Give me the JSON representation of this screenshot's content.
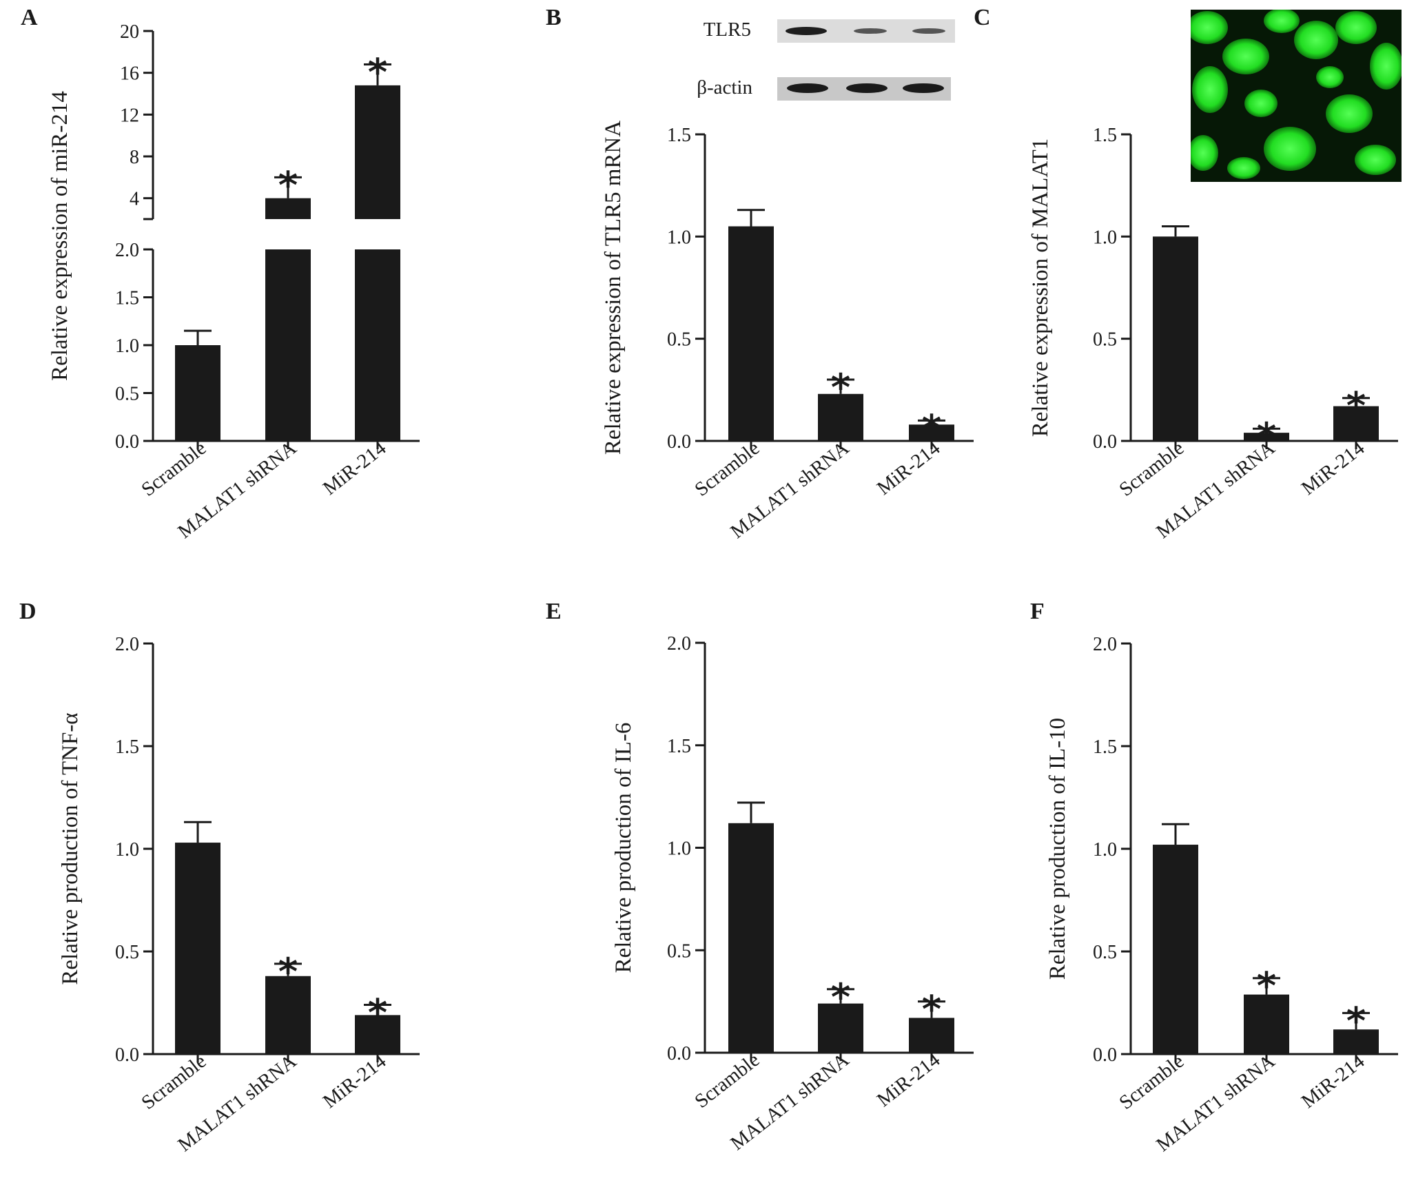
{
  "figure": {
    "panels": [
      {
        "letter": "A"
      },
      {
        "letter": "B",
        "blot": {
          "bands": [
            {
              "label": "TLR5"
            },
            {
              "label": "β-actin"
            }
          ]
        }
      },
      {
        "letter": "C",
        "micrograph": true
      },
      {
        "letter": "D"
      },
      {
        "letter": "E"
      },
      {
        "letter": "F"
      }
    ]
  },
  "colors": {
    "bar": "#1a1a1a",
    "axis": "#1a1a1a",
    "fluorescence": "#22ee22",
    "blot_background": "#d6d6d6"
  },
  "chart_data": [
    {
      "type": "bar",
      "panel": "A",
      "ylabel": "Relative expression of miR-214",
      "categories": [
        "Scramble",
        "MALAT1 shRNA",
        "MiR-214"
      ],
      "values": [
        1.0,
        4.0,
        14.8
      ],
      "errors": [
        0.15,
        2.0,
        2.0
      ],
      "significant": [
        false,
        true,
        true
      ],
      "star_symbol": "*",
      "axis_break": true,
      "lower_segment": {
        "ylim": [
          0,
          2.0
        ],
        "ticks": [
          "0.0",
          "0.5",
          "1.0",
          "1.5",
          "2.0"
        ]
      },
      "upper_segment": {
        "ylim": [
          2.0,
          20
        ],
        "ticks": [
          "4",
          "8",
          "12",
          "16",
          "20"
        ]
      }
    },
    {
      "type": "bar",
      "panel": "B",
      "ylabel": "Relative expression of TLR5 mRNA",
      "categories": [
        "Scramble",
        "MALAT1 shRNA",
        "MiR-214"
      ],
      "values": [
        1.05,
        0.23,
        0.08
      ],
      "errors": [
        0.08,
        0.07,
        0.02
      ],
      "significant": [
        false,
        true,
        true
      ],
      "star_symbol": "*",
      "ylim": [
        0,
        1.5
      ],
      "ticks": [
        "0.0",
        "0.5",
        "1.0",
        "1.5"
      ]
    },
    {
      "type": "bar",
      "panel": "C",
      "ylabel": "Relative expression of MALAT1",
      "categories": [
        "Scramble",
        "MALAT1 shRNA",
        "MiR-214"
      ],
      "values": [
        1.0,
        0.04,
        0.17
      ],
      "errors": [
        0.05,
        0.02,
        0.04
      ],
      "significant": [
        false,
        true,
        true
      ],
      "star_symbol": "*",
      "ylim": [
        0,
        1.5
      ],
      "ticks": [
        "0.0",
        "0.5",
        "1.0",
        "1.5"
      ]
    },
    {
      "type": "bar",
      "panel": "D",
      "ylabel": "Relative production of TNF-α",
      "categories": [
        "Scramble",
        "MALAT1 shRNA",
        "MiR-214"
      ],
      "values": [
        1.03,
        0.38,
        0.19
      ],
      "errors": [
        0.1,
        0.06,
        0.05
      ],
      "significant": [
        false,
        true,
        true
      ],
      "star_symbol": "*",
      "ylim": [
        0,
        2.0
      ],
      "ticks": [
        "0.0",
        "0.5",
        "1.0",
        "1.5",
        "2.0"
      ]
    },
    {
      "type": "bar",
      "panel": "E",
      "ylabel": "Relative production of IL-6",
      "categories": [
        "Scramble",
        "MALAT1 shRNA",
        "MiR-214"
      ],
      "values": [
        1.12,
        0.24,
        0.17
      ],
      "errors": [
        0.1,
        0.07,
        0.08
      ],
      "significant": [
        false,
        true,
        true
      ],
      "star_symbol": "*",
      "ylim": [
        0,
        2.0
      ],
      "ticks": [
        "0.0",
        "0.5",
        "1.0",
        "1.5",
        "2.0"
      ]
    },
    {
      "type": "bar",
      "panel": "F",
      "ylabel": "Relative production of IL-10",
      "categories": [
        "Scramble",
        "MALAT1 shRNA",
        "MiR-214"
      ],
      "values": [
        1.02,
        0.29,
        0.12
      ],
      "errors": [
        0.1,
        0.08,
        0.08
      ],
      "significant": [
        false,
        true,
        true
      ],
      "star_symbol": "*",
      "ylim": [
        0,
        2.0
      ],
      "ticks": [
        "0.0",
        "0.5",
        "1.0",
        "1.5",
        "2.0"
      ]
    }
  ]
}
